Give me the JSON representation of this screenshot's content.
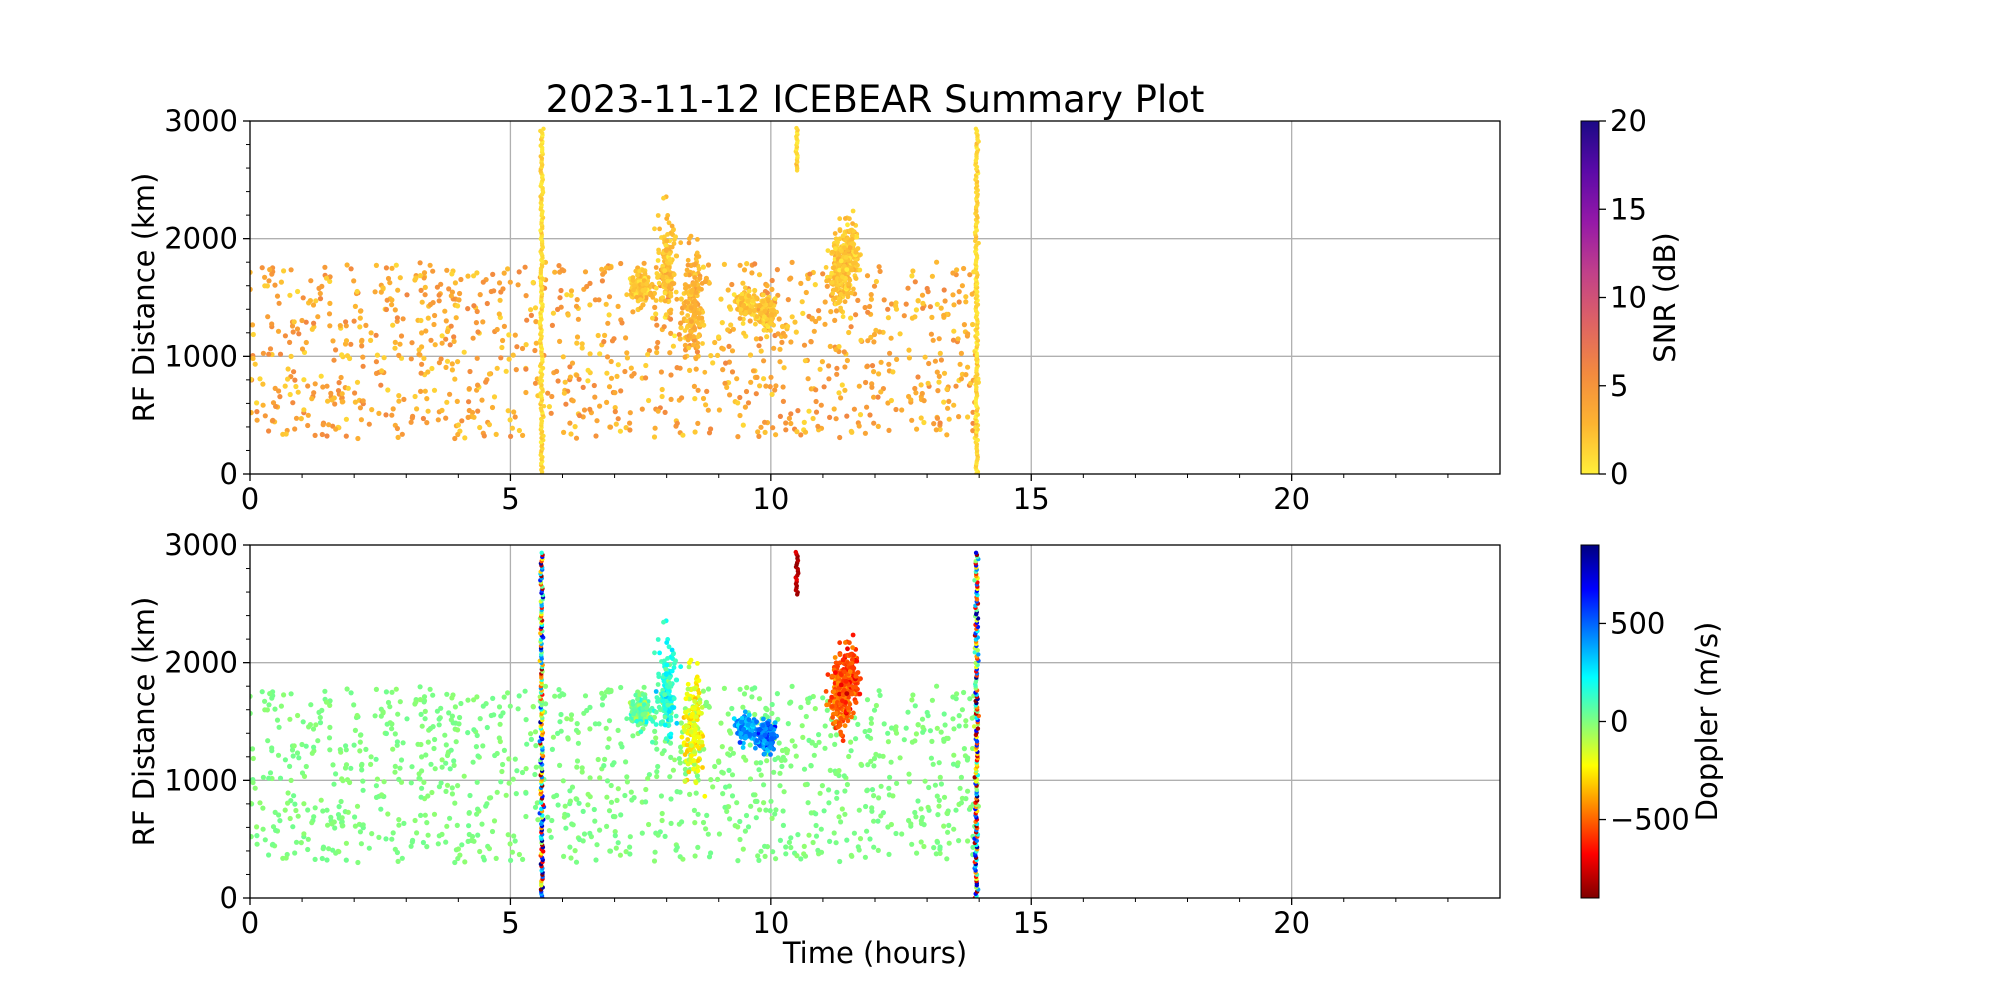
{
  "figure": {
    "title": "2023-11-12 ICEBEAR Summary Plot",
    "xlabel": "Time (hours)"
  },
  "colors": {
    "grid": "#b0b0b0",
    "axis": "#000000",
    "snr_colormap": [
      "#ffef3a",
      "#fdb431",
      "#f38a3f",
      "#de6364",
      "#c1408a",
      "#9519a8",
      "#5b0aa8",
      "#1b0a86"
    ],
    "doppler_colormap": [
      "#7f0000",
      "#ff0000",
      "#ff8000",
      "#ffff00",
      "#80ff80",
      "#00ffff",
      "#0080ff",
      "#0000ff",
      "#000080"
    ]
  },
  "chart_data": [
    {
      "type": "scatter",
      "name": "snr-panel",
      "xlabel": "",
      "ylabel": "RF Distance (km)",
      "xlim": [
        0,
        24
      ],
      "ylim": [
        0,
        3000
      ],
      "xticks": [
        "0",
        "5",
        "10",
        "15",
        "20"
      ],
      "yticks": [
        "0",
        "1000",
        "2000",
        "3000"
      ],
      "grid": true,
      "colorbar": {
        "label": "SNR (dB)",
        "range": [
          0,
          20
        ],
        "ticks": [
          "0",
          "5",
          "10",
          "15",
          "20"
        ]
      },
      "scatter": {
        "time_range": [
          0,
          14.0
        ],
        "range_km": [
          300,
          1800
        ],
        "typical_snr_db": [
          1,
          6
        ]
      },
      "clusters": [
        {
          "x": 7.5,
          "y": [
            1480,
            1700
          ],
          "value": 2
        },
        {
          "x": 8.0,
          "y": [
            1400,
            2150
          ],
          "value": 2
        },
        {
          "x": 8.5,
          "y": [
            1050,
            1850
          ],
          "value": 3
        },
        {
          "x": 9.5,
          "y": [
            1350,
            1550
          ],
          "value": 2
        },
        {
          "x": 9.9,
          "y": [
            1250,
            1500
          ],
          "value": 2
        },
        {
          "x": 11.3,
          "y": [
            1450,
            2000
          ],
          "value": 2
        },
        {
          "x": 11.5,
          "y": [
            1600,
            2150
          ],
          "value": 2
        }
      ],
      "vertical_streaks": [
        {
          "x": 5.6,
          "y": [
            0,
            2950
          ],
          "value": 1
        },
        {
          "x": 10.5,
          "y": [
            2580,
            2950
          ],
          "value": 1
        },
        {
          "x": 13.95,
          "y": [
            0,
            2950
          ],
          "value": 1
        }
      ]
    },
    {
      "type": "scatter",
      "name": "doppler-panel",
      "xlabel": "Time (hours)",
      "ylabel": "RF Distance (km)",
      "xlim": [
        0,
        24
      ],
      "ylim": [
        0,
        3000
      ],
      "xticks": [
        "0",
        "5",
        "10",
        "15",
        "20"
      ],
      "yticks": [
        "0",
        "1000",
        "2000",
        "3000"
      ],
      "grid": true,
      "colorbar": {
        "label": "Doppler (m/s)",
        "range": [
          -900,
          900
        ],
        "ticks": [
          "−500",
          "0",
          "500"
        ]
      },
      "scatter": {
        "time_range": [
          0,
          14.0
        ],
        "range_km": [
          300,
          1800
        ],
        "typical_doppler_ms": [
          -30,
          30
        ]
      },
      "clusters": [
        {
          "x": 7.5,
          "y": [
            1480,
            1700
          ],
          "value": 50
        },
        {
          "x": 8.0,
          "y": [
            1400,
            2150
          ],
          "value": 150
        },
        {
          "x": 8.5,
          "y": [
            1050,
            1850
          ],
          "value": -200
        },
        {
          "x": 9.5,
          "y": [
            1350,
            1550
          ],
          "value": 400
        },
        {
          "x": 9.9,
          "y": [
            1250,
            1500
          ],
          "value": 450
        },
        {
          "x": 11.3,
          "y": [
            1450,
            2000
          ],
          "value": -500
        },
        {
          "x": 11.5,
          "y": [
            1600,
            2150
          ],
          "value": -550
        }
      ],
      "vertical_streaks": [
        {
          "x": 5.6,
          "y": [
            0,
            2950
          ],
          "value": "mixed"
        },
        {
          "x": 10.5,
          "y": [
            2580,
            2950
          ],
          "value": -800
        },
        {
          "x": 13.95,
          "y": [
            0,
            2950
          ],
          "value": "mixed"
        }
      ]
    }
  ]
}
